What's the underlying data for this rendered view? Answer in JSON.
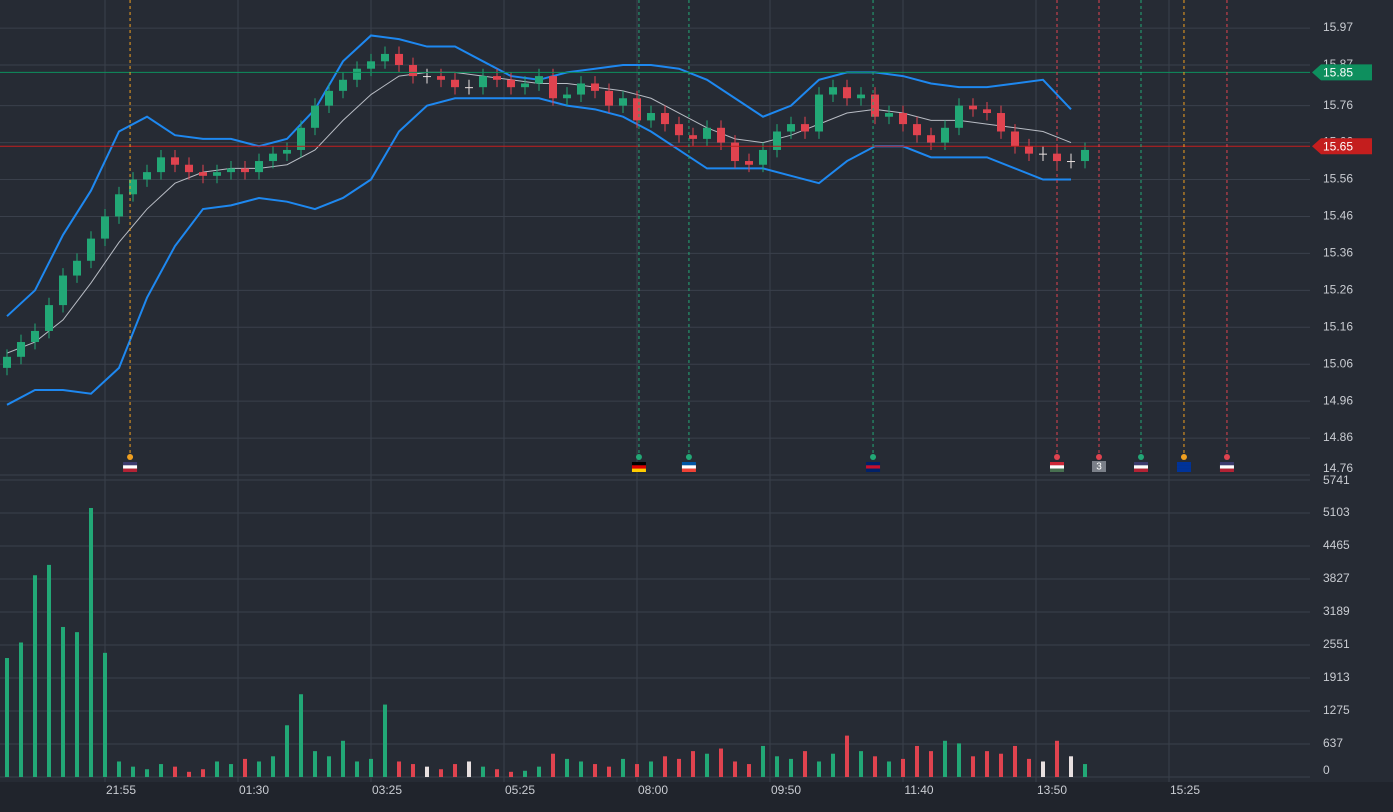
{
  "chart_data": [
    {
      "type": "candlestick",
      "xlim": [
        -0.5,
        99
      ],
      "ylim": [
        14.76,
        16.046
      ],
      "yticks": [
        15.97,
        15.87,
        15.76,
        15.66,
        15.56,
        15.46,
        15.36,
        15.26,
        15.16,
        15.06,
        14.96,
        14.86,
        14.76
      ],
      "grid": true,
      "up_color": "#22a876",
      "down_color": "#e0434f",
      "flat_color": "#e8e0e0",
      "open": [
        15.05,
        15.08,
        15.12,
        15.15,
        15.22,
        15.3,
        15.34,
        15.4,
        15.46,
        15.52,
        15.56,
        15.58,
        15.62,
        15.6,
        15.58,
        15.57,
        15.58,
        15.59,
        15.58,
        15.61,
        15.63,
        15.64,
        15.7,
        15.76,
        15.8,
        15.83,
        15.86,
        15.88,
        15.9,
        15.87,
        15.84,
        15.84,
        15.83,
        15.81,
        15.81,
        15.84,
        15.83,
        15.81,
        15.82,
        15.84,
        15.78,
        15.79,
        15.82,
        15.8,
        15.76,
        15.78,
        15.72,
        15.74,
        15.71,
        15.68,
        15.67,
        15.7,
        15.66,
        15.61,
        15.6,
        15.64,
        15.69,
        15.71,
        15.69,
        15.79,
        15.81,
        15.78,
        15.79,
        15.73,
        15.74,
        15.71,
        15.68,
        15.66,
        15.7,
        15.76,
        15.75,
        15.74,
        15.69,
        15.65,
        15.63,
        15.63,
        15.61,
        15.61
      ],
      "high": [
        15.1,
        15.14,
        15.17,
        15.24,
        15.32,
        15.36,
        15.42,
        15.48,
        15.54,
        15.58,
        15.6,
        15.64,
        15.64,
        15.62,
        15.6,
        15.6,
        15.61,
        15.61,
        15.63,
        15.65,
        15.66,
        15.72,
        15.78,
        15.82,
        15.85,
        15.88,
        15.9,
        15.92,
        15.92,
        15.89,
        15.86,
        15.86,
        15.85,
        15.83,
        15.86,
        15.86,
        15.85,
        15.84,
        15.86,
        15.86,
        15.81,
        15.84,
        15.84,
        15.82,
        15.8,
        15.8,
        15.76,
        15.76,
        15.73,
        15.7,
        15.72,
        15.72,
        15.68,
        15.63,
        15.66,
        15.71,
        15.73,
        15.73,
        15.81,
        15.83,
        15.83,
        15.81,
        15.81,
        15.76,
        15.76,
        15.73,
        15.7,
        15.72,
        15.78,
        15.78,
        15.77,
        15.76,
        15.71,
        15.67,
        15.65,
        15.65,
        15.63,
        15.66
      ],
      "low": [
        15.03,
        15.06,
        15.1,
        15.13,
        15.2,
        15.28,
        15.32,
        15.38,
        15.44,
        15.5,
        15.54,
        15.56,
        15.58,
        15.56,
        15.55,
        15.55,
        15.56,
        15.56,
        15.56,
        15.59,
        15.61,
        15.62,
        15.68,
        15.74,
        15.78,
        15.81,
        15.84,
        15.86,
        15.85,
        15.82,
        15.82,
        15.81,
        15.79,
        15.79,
        15.79,
        15.81,
        15.79,
        15.79,
        15.8,
        15.76,
        15.76,
        15.77,
        15.78,
        15.74,
        15.74,
        15.7,
        15.7,
        15.69,
        15.66,
        15.65,
        15.65,
        15.64,
        15.59,
        15.58,
        15.58,
        15.62,
        15.67,
        15.67,
        15.67,
        15.77,
        15.76,
        15.76,
        15.71,
        15.71,
        15.69,
        15.66,
        15.64,
        15.64,
        15.68,
        15.73,
        15.72,
        15.67,
        15.63,
        15.61,
        15.61,
        15.59,
        15.59,
        15.59
      ],
      "close": [
        15.08,
        15.12,
        15.15,
        15.22,
        15.3,
        15.34,
        15.4,
        15.46,
        15.52,
        15.56,
        15.58,
        15.62,
        15.6,
        15.58,
        15.57,
        15.58,
        15.59,
        15.58,
        15.61,
        15.63,
        15.64,
        15.7,
        15.76,
        15.8,
        15.83,
        15.86,
        15.88,
        15.9,
        15.87,
        15.84,
        15.84,
        15.83,
        15.81,
        15.81,
        15.84,
        15.83,
        15.81,
        15.82,
        15.84,
        15.78,
        15.79,
        15.82,
        15.8,
        15.76,
        15.78,
        15.72,
        15.74,
        15.71,
        15.68,
        15.67,
        15.7,
        15.66,
        15.61,
        15.6,
        15.64,
        15.69,
        15.71,
        15.69,
        15.79,
        15.81,
        15.78,
        15.79,
        15.73,
        15.74,
        15.71,
        15.68,
        15.66,
        15.7,
        15.76,
        15.75,
        15.74,
        15.69,
        15.65,
        15.63,
        15.63,
        15.61,
        15.61,
        15.64
      ],
      "bands_x": [
        0,
        2,
        4,
        6,
        8,
        10,
        12,
        14,
        16,
        18,
        20,
        22,
        24,
        26,
        28,
        30,
        32,
        34,
        36,
        38,
        40,
        42,
        44,
        46,
        48,
        50,
        52,
        54,
        56,
        58,
        60,
        62,
        64,
        66,
        68,
        70,
        72,
        74,
        76
      ],
      "bands": [
        {
          "color": "#1e88f0",
          "values": [
            15.19,
            15.26,
            15.41,
            15.53,
            15.69,
            15.73,
            15.68,
            15.67,
            15.67,
            15.65,
            15.67,
            15.75,
            15.88,
            15.95,
            15.94,
            15.92,
            15.92,
            15.88,
            15.84,
            15.83,
            15.85,
            15.86,
            15.87,
            15.87,
            15.86,
            15.83,
            15.78,
            15.73,
            15.76,
            15.83,
            15.85,
            15.85,
            15.84,
            15.82,
            15.81,
            15.81,
            15.82,
            15.83,
            15.75
          ]
        },
        {
          "color": "#b8bcc4",
          "values": [
            15.09,
            15.12,
            15.18,
            15.28,
            15.39,
            15.48,
            15.55,
            15.58,
            15.59,
            15.59,
            15.6,
            15.64,
            15.72,
            15.79,
            15.84,
            15.85,
            15.85,
            15.84,
            15.83,
            15.82,
            15.82,
            15.81,
            15.8,
            15.78,
            15.74,
            15.7,
            15.67,
            15.66,
            15.68,
            15.71,
            15.74,
            15.75,
            15.74,
            15.72,
            15.72,
            15.71,
            15.7,
            15.69,
            15.66
          ]
        },
        {
          "color": "#1e88f0",
          "values": [
            14.95,
            14.99,
            14.99,
            14.98,
            15.05,
            15.24,
            15.38,
            15.48,
            15.49,
            15.51,
            15.5,
            15.48,
            15.51,
            15.56,
            15.69,
            15.76,
            15.78,
            15.78,
            15.78,
            15.78,
            15.76,
            15.75,
            15.73,
            15.69,
            15.64,
            15.59,
            15.59,
            15.59,
            15.57,
            15.55,
            15.61,
            15.65,
            15.65,
            15.62,
            15.62,
            15.62,
            15.59,
            15.56,
            15.56
          ]
        }
      ],
      "price_lines": [
        {
          "value": 15.85,
          "color": "#0e8f5e"
        },
        {
          "value": 15.65,
          "color": "#c41e1e"
        }
      ],
      "events": [
        {
          "x": 8.79,
          "color": "#f0a020",
          "flag": [
            "#3c3b6e",
            "#ffffff",
            "#b22234"
          ]
        },
        {
          "x": 45.14,
          "color": "#22a876",
          "flag": [
            "#000000",
            "#dd0000",
            "#ffcc00"
          ]
        },
        {
          "x": 48.71,
          "color": "#22a876",
          "flag": [
            "#0055a4",
            "#ffffff",
            "#ef4135"
          ]
        },
        {
          "x": 61.86,
          "color": "#22a876",
          "flag": [
            "#012169",
            "#c8102e",
            "#012169"
          ]
        },
        {
          "x": 75.0,
          "color": "#e0434f",
          "flag": [
            "#ce2939",
            "#ffffff",
            "#477050"
          ]
        },
        {
          "x": 78.0,
          "color": "#e0434f",
          "label": "3"
        },
        {
          "x": 81.0,
          "color": "#22a876",
          "flag": [
            "#3c3b6e",
            "#ffffff",
            "#b22234"
          ]
        },
        {
          "x": 84.07,
          "color": "#f0a020",
          "flag": [
            "#003399",
            "#003399",
            "#003399"
          ]
        },
        {
          "x": 87.14,
          "color": "#e0434f",
          "flag": [
            "#3c3b6e",
            "#ffffff",
            "#b22234"
          ]
        }
      ]
    },
    {
      "type": "bar",
      "xlim": [
        -0.5,
        99
      ],
      "ylim": [
        0,
        5741
      ],
      "yticks": [
        5741,
        5103,
        4465,
        3827,
        3189,
        2551,
        1913,
        1275,
        637,
        0
      ],
      "grid": true,
      "xticks": [
        {
          "value": 7,
          "label": "21:55"
        },
        {
          "value": 16.5,
          "label": "01:30"
        },
        {
          "value": 26,
          "label": "03:25"
        },
        {
          "value": 35.5,
          "label": "05:25"
        },
        {
          "value": 45,
          "label": "08:00"
        },
        {
          "value": 54.5,
          "label": "09:50"
        },
        {
          "value": 64,
          "label": "11:40"
        },
        {
          "value": 73.5,
          "label": "13:50"
        },
        {
          "value": 83,
          "label": "15:25"
        }
      ],
      "values": [
        2300,
        2600,
        3900,
        4100,
        2900,
        2800,
        5200,
        2400,
        300,
        200,
        150,
        250,
        200,
        100,
        150,
        300,
        250,
        350,
        300,
        400,
        1000,
        1600,
        500,
        400,
        700,
        300,
        350,
        1400,
        300,
        250,
        200,
        150,
        250,
        300,
        200,
        150,
        100,
        120,
        200,
        450,
        350,
        300,
        250,
        200,
        350,
        250,
        300,
        400,
        350,
        500,
        450,
        550,
        300,
        250,
        600,
        400,
        350,
        500,
        300,
        450,
        800,
        500,
        400,
        300,
        350,
        600,
        500,
        700,
        650,
        400,
        500,
        450,
        600,
        350,
        300,
        700,
        400,
        250
      ]
    }
  ]
}
